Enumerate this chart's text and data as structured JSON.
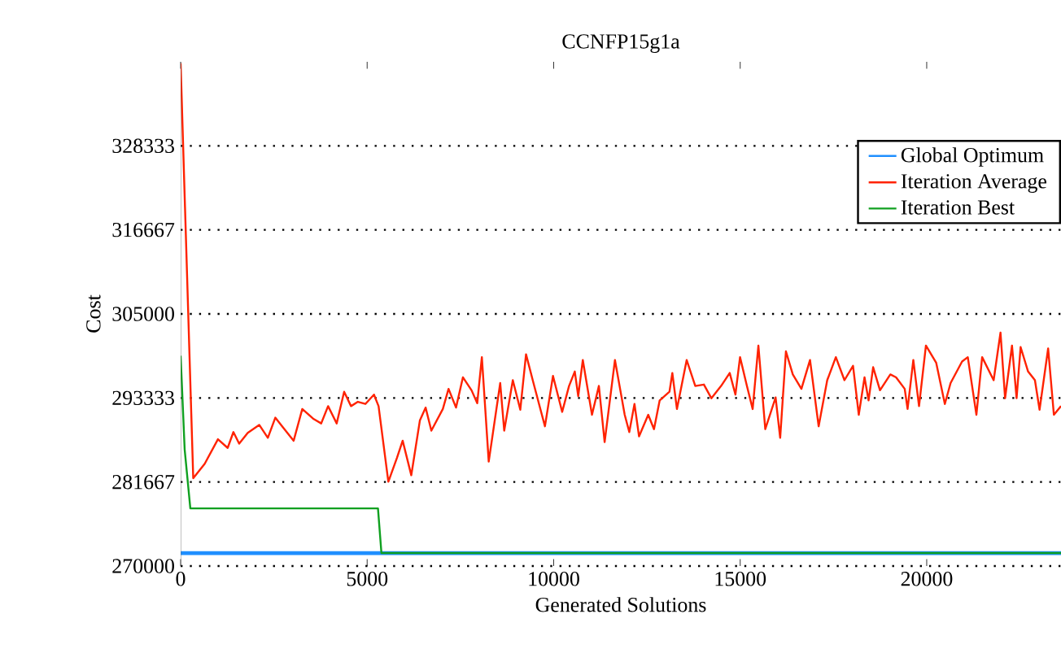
{
  "chart_data": {
    "type": "line",
    "title": "CCNFP15g1a",
    "xlabel": "Generated Solutions",
    "ylabel": "Cost",
    "xlim": [
      0,
      23600
    ],
    "xticks": [
      0,
      5000,
      10000,
      15000,
      20000
    ],
    "ylim": [
      270000,
      340000
    ],
    "yticks": [
      270000,
      281667,
      293333,
      305000,
      316667,
      328333
    ],
    "grid": "y",
    "legend": "top right",
    "series": [
      {
        "name": "Global Optimum",
        "color": "#1f8fff",
        "x": [
          0,
          23600
        ],
        "values": [
          271800,
          271800
        ]
      },
      {
        "name": "Iteration Average",
        "color": "#ff2200",
        "x": [
          0,
          338,
          646,
          1000,
          1261,
          1415,
          1569,
          1799,
          2107,
          2338,
          2538,
          2722,
          3030,
          3261,
          3568,
          3768,
          3953,
          4183,
          4383,
          4568,
          4752,
          4952,
          5183,
          5306,
          5568,
          5798,
          5952,
          6183,
          6413,
          6567,
          6721,
          7029,
          7182,
          7382,
          7567,
          7798,
          7951,
          8075,
          8259,
          8567,
          8674,
          8905,
          9105,
          9259,
          9459,
          9766,
          9982,
          10228,
          10412,
          10566,
          10658,
          10781,
          11027,
          11212,
          11366,
          11643,
          11904,
          12027,
          12166,
          12289,
          12535,
          12689,
          12842,
          13104,
          13181,
          13304,
          13565,
          13796,
          14027,
          14227,
          14488,
          14719,
          14872,
          14996,
          15180,
          15334,
          15488,
          15672,
          15949,
          16072,
          16226,
          16410,
          16641,
          16872,
          17103,
          17333,
          17564,
          17795,
          18025,
          18179,
          18333,
          18441,
          18564,
          18748,
          19025,
          19179,
          19410,
          19487,
          19641,
          19794,
          19979,
          20255,
          20486,
          20640,
          20948,
          21101,
          21332,
          21486,
          21794,
          21978,
          22101,
          22286,
          22409,
          22517,
          22717,
          22901,
          23025,
          23255,
          23409,
          23600
        ],
        "values": [
          339800,
          282200,
          284200,
          287600,
          286400,
          288600,
          287000,
          288500,
          289600,
          287800,
          290600,
          289400,
          287400,
          291800,
          290400,
          289800,
          292200,
          289800,
          294200,
          292200,
          292800,
          292500,
          293800,
          292200,
          281700,
          285000,
          287400,
          282600,
          290200,
          292000,
          288800,
          291800,
          294600,
          292000,
          296200,
          294400,
          292600,
          299000,
          284500,
          295400,
          288800,
          295800,
          291700,
          299400,
          295400,
          289400,
          296400,
          291400,
          295000,
          297000,
          293600,
          298600,
          291000,
          295000,
          287200,
          298600,
          291000,
          288600,
          292500,
          288000,
          291000,
          289000,
          293000,
          294200,
          296800,
          291800,
          298600,
          295000,
          295200,
          293300,
          295000,
          296800,
          293800,
          299000,
          295000,
          291800,
          300600,
          289000,
          293400,
          287800,
          299800,
          296600,
          294600,
          298600,
          289400,
          295800,
          299000,
          295800,
          297800,
          291000,
          296200,
          293000,
          297600,
          294400,
          296600,
          296200,
          294600,
          291800,
          298600,
          292200,
          300600,
          298200,
          292500,
          295400,
          298400,
          299000,
          291000,
          299000,
          295800,
          302400,
          293300,
          300600,
          293300,
          300400,
          297000,
          295800,
          291700,
          300200,
          291000,
          292200
        ]
      },
      {
        "name": "Iteration Best",
        "color": "#10a020",
        "x": [
          0,
          108,
          260,
          5290,
          5383,
          23600
        ],
        "values": [
          299200,
          286200,
          278000,
          278000,
          271800,
          271800
        ]
      }
    ]
  }
}
